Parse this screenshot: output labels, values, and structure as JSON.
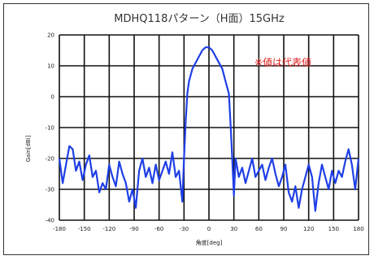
{
  "chart_data": {
    "type": "line",
    "title": "MDHQ118パターン（H面）15GHz",
    "xlabel": "角度[deg]",
    "ylabel": "Gain[dBi]",
    "annotation": "※値は代表値",
    "xlim": [
      -180,
      180
    ],
    "ylim": [
      -40,
      20
    ],
    "xticks": [
      -180,
      -150,
      -120,
      -90,
      -60,
      -30,
      0,
      30,
      60,
      90,
      120,
      150,
      180
    ],
    "yticks": [
      20,
      10,
      0,
      -10,
      -20,
      -30,
      -40
    ],
    "grid": true,
    "series_color": "#1f3fe6",
    "series": [
      {
        "x": [
          -180,
          -176,
          -172,
          -168,
          -164,
          -160,
          -156,
          -152,
          -148,
          -144,
          -140,
          -136,
          -132,
          -128,
          -124,
          -120,
          -116,
          -112,
          -108,
          -104,
          -100,
          -96,
          -92,
          -88,
          -84,
          -80,
          -76,
          -72,
          -68,
          -64,
          -60,
          -56,
          -52,
          -48,
          -44,
          -40,
          -36,
          -32,
          -30,
          -28,
          -26,
          -24,
          -20,
          -16,
          -12,
          -8,
          -4,
          0,
          4,
          8,
          12,
          16,
          20,
          24,
          26,
          28,
          30,
          32,
          36,
          40,
          44,
          48,
          52,
          56,
          60,
          64,
          68,
          72,
          76,
          80,
          84,
          88,
          92,
          96,
          100,
          104,
          108,
          112,
          116,
          120,
          124,
          128,
          132,
          136,
          140,
          144,
          148,
          152,
          156,
          160,
          164,
          168,
          172,
          176,
          180
        ],
        "y": [
          -20,
          -28,
          -22,
          -16,
          -17,
          -24,
          -21,
          -27,
          -22,
          -19,
          -26,
          -24,
          -31,
          -28,
          -30,
          -22,
          -26,
          -29,
          -21,
          -25,
          -28,
          -34,
          -30,
          -36,
          -24,
          -20,
          -26,
          -23,
          -28,
          -22,
          -27,
          -24,
          -21,
          -25,
          -18,
          -26,
          -24,
          -34,
          -20,
          -8,
          1,
          5,
          9,
          11,
          13,
          15,
          16,
          16,
          15,
          13,
          11,
          9,
          5,
          1,
          -9,
          -20,
          -32,
          -20,
          -26,
          -23,
          -28,
          -24,
          -20,
          -26,
          -24,
          -22,
          -27,
          -23,
          -20,
          -25,
          -29,
          -26,
          -22,
          -31,
          -34,
          -29,
          -36,
          -30,
          -26,
          -22,
          -26,
          -37,
          -28,
          -22,
          -26,
          -30,
          -24,
          -28,
          -24,
          -26,
          -21,
          -17,
          -22,
          -30,
          -20
        ]
      }
    ]
  }
}
